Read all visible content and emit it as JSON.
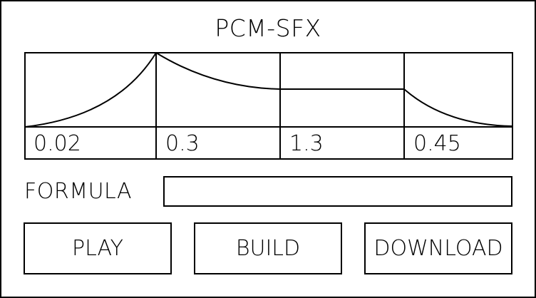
{
  "app": {
    "title": "PCM-SFX"
  },
  "envelope": {
    "stages": [
      {
        "name": "attack",
        "value": "0.02"
      },
      {
        "name": "decay",
        "value": "0.3"
      },
      {
        "name": "sustain",
        "value": "1.3"
      },
      {
        "name": "release",
        "value": "0.45"
      }
    ]
  },
  "formula": {
    "label": "FORMULA",
    "value": "",
    "placeholder": ""
  },
  "buttons": {
    "play": "PLAY",
    "build": "BUILD",
    "download": "DOWNLOAD"
  }
}
